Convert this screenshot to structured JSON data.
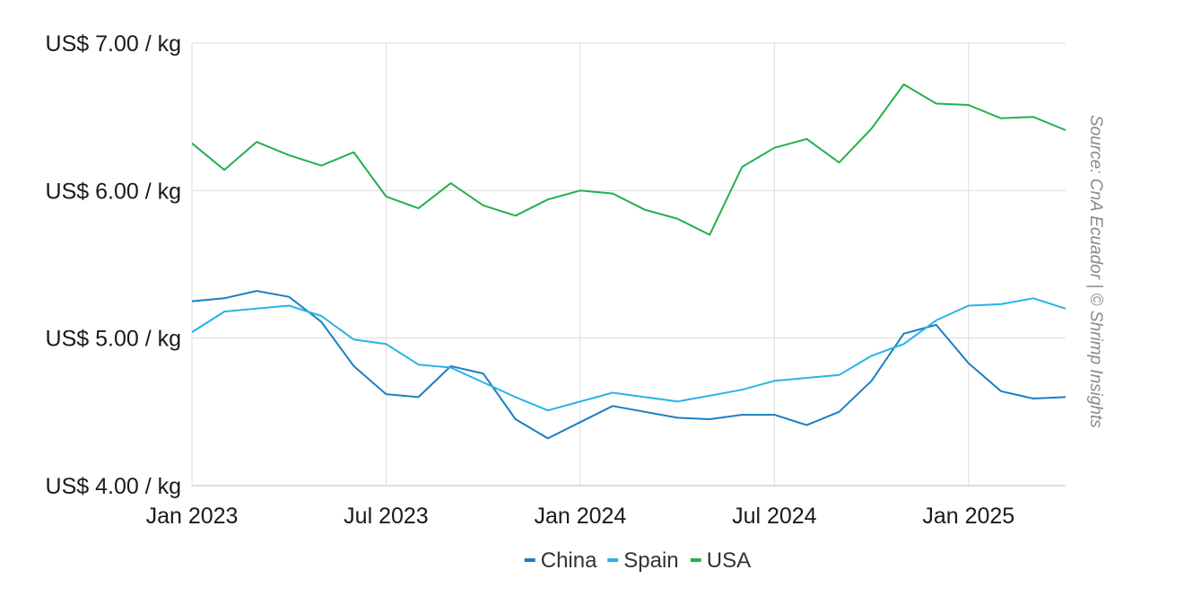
{
  "chart_data": {
    "type": "line",
    "title": "",
    "xlabel": "",
    "ylabel": "",
    "y_ticks": [
      "US$ 4.00 / kg",
      "US$ 5.00 / kg",
      "US$ 6.00 / kg",
      "US$ 7.00 / kg"
    ],
    "ylim": [
      4.0,
      7.0
    ],
    "x_ticks": [
      "Jan 2023",
      "Jul 2023",
      "Jan 2024",
      "Jul 2024",
      "Jan 2025"
    ],
    "x": [
      "2023-01",
      "2023-02",
      "2023-03",
      "2023-04",
      "2023-05",
      "2023-06",
      "2023-07",
      "2023-08",
      "2023-09",
      "2023-10",
      "2023-11",
      "2023-12",
      "2024-01",
      "2024-02",
      "2024-03",
      "2024-04",
      "2024-05",
      "2024-06",
      "2024-07",
      "2024-08",
      "2024-09",
      "2024-10",
      "2024-11",
      "2024-12",
      "2025-01",
      "2025-02",
      "2025-03",
      "2025-04"
    ],
    "grid": true,
    "legend_position": "bottom",
    "series": [
      {
        "name": "China",
        "color": "#1a7fc4",
        "values": [
          5.25,
          5.27,
          5.32,
          5.28,
          5.11,
          4.81,
          4.62,
          4.6,
          4.81,
          4.76,
          4.45,
          4.32,
          4.43,
          4.54,
          4.5,
          4.46,
          4.45,
          4.48,
          4.48,
          4.41,
          4.5,
          4.71,
          5.03,
          5.09,
          4.83,
          4.64,
          4.59,
          4.6
        ]
      },
      {
        "name": "Spain",
        "color": "#26b3e8",
        "values": [
          5.04,
          5.18,
          5.2,
          5.22,
          5.15,
          4.99,
          4.96,
          4.82,
          4.8,
          4.7,
          4.6,
          4.51,
          4.57,
          4.63,
          4.6,
          4.57,
          4.61,
          4.65,
          4.71,
          4.73,
          4.75,
          4.88,
          4.96,
          5.12,
          5.22,
          5.23,
          5.27,
          5.2
        ]
      },
      {
        "name": "USA",
        "color": "#22b14c",
        "values": [
          6.32,
          6.14,
          6.33,
          6.24,
          6.17,
          6.26,
          5.96,
          5.88,
          6.05,
          5.9,
          5.83,
          5.94,
          6.0,
          5.98,
          5.87,
          5.81,
          5.7,
          6.16,
          6.29,
          6.35,
          6.19,
          6.42,
          6.72,
          6.59,
          6.58,
          6.49,
          6.5,
          6.41
        ]
      }
    ],
    "source": "Source: CnA Ecuador | © Shrimp Insights"
  }
}
